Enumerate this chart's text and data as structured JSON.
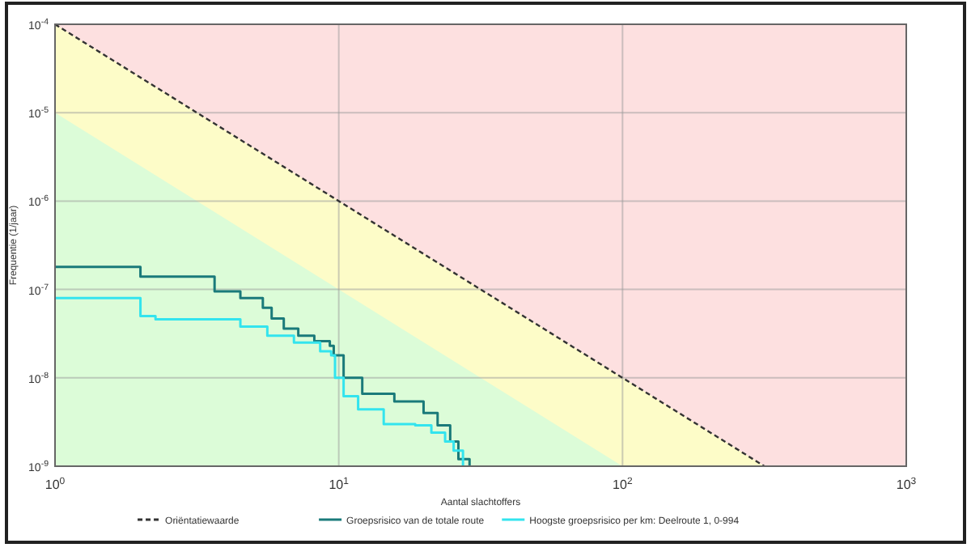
{
  "chart_data": {
    "type": "step",
    "xlabel": "Aantal slachtoffers",
    "ylabel": "Frequentie (1/jaar)",
    "log": "xy",
    "grid": true,
    "legend": "bottom",
    "xlim": [
      1,
      1000
    ],
    "ylim": [
      1e-09,
      0.0001
    ],
    "xticks": [
      {
        "value": 1,
        "label": "10$^{0}$"
      },
      {
        "value": 10,
        "label": "10$^{1}$"
      },
      {
        "value": 100,
        "label": "10$^{2}$"
      },
      {
        "value": 1000,
        "label": "10$^{3}$"
      }
    ],
    "yticks": [
      {
        "value": 1e-09,
        "label": "10$^{-9}$"
      },
      {
        "value": 1e-08,
        "label": "10$^{-8}$"
      },
      {
        "value": 1e-07,
        "label": "10$^{-7}$"
      },
      {
        "value": 1e-06,
        "label": "10$^{-6}$"
      },
      {
        "value": 1e-05,
        "label": "10$^{-5}$"
      },
      {
        "value": 0.0001,
        "label": "10$^{-4}$"
      }
    ],
    "bands": [
      {
        "axis": "y",
        "from": 1e-09,
        "to": 0.0001,
        "color": "#fde0e0"
      }
    ],
    "series": [
      {
        "type": "area",
        "color": "#dcfcd8",
        "x": [
          1,
          100
        ],
        "values": [
          1e-05,
          1e-09
        ]
      },
      {
        "type": "line",
        "name": "Oriëntatiewaarde",
        "color": "#333333",
        "line_style": "dotted",
        "x": [
          1,
          316.2
        ],
        "values": [
          0.0001,
          1e-09
        ]
      },
      {
        "name": "Groepsrisico van de totale route",
        "color": "#1a7a7a",
        "x": [
          1,
          2,
          3.65,
          4.5,
          5.4,
          5.8,
          6.4,
          7.2,
          8.2,
          9.3,
          9.6,
          10.4,
          12.1,
          15.7,
          19.9,
          22.3,
          24.7,
          26.4,
          28.9
        ],
        "values": [
          1.8e-07,
          1.4e-07,
          9.5e-08,
          8e-08,
          6.2e-08,
          4.7e-08,
          3.6e-08,
          3e-08,
          2.6e-08,
          2.3e-08,
          1.8e-08,
          1e-08,
          6.6e-09,
          5.4e-09,
          4e-09,
          2.9e-09,
          1.9e-09,
          1.2e-09,
          1e-09
        ]
      },
      {
        "name": "Hoogste groepsrisico per km: Deelroute 1, 0-994",
        "color": "#33e4ee",
        "x": [
          1,
          2,
          2.26,
          4.5,
          5.6,
          6.95,
          8.6,
          9.4,
          9.7,
          10.4,
          11.7,
          14.4,
          18.6,
          21.2,
          23.7,
          25.4,
          27.4
        ],
        "values": [
          8e-08,
          5e-08,
          4.6e-08,
          3.8e-08,
          3e-08,
          2.5e-08,
          2e-08,
          1.8e-08,
          1e-08,
          6.2e-09,
          4.4e-09,
          3e-09,
          2.9e-09,
          2.4e-09,
          1.9e-09,
          1.5e-09,
          1e-09
        ]
      }
    ]
  }
}
